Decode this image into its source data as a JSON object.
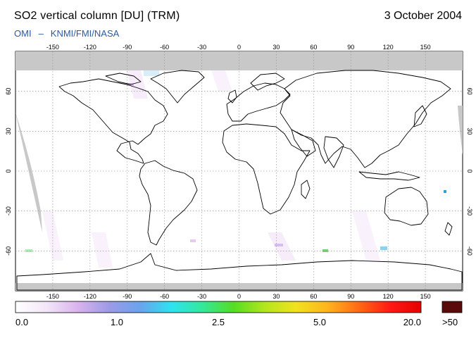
{
  "header": {
    "title": "SO2 vertical column [DU] (TRM)",
    "date": "3 October 2004",
    "source_left": "OMI",
    "source_sep": "–",
    "source_right": "KNMI/FMI/NASA"
  },
  "map": {
    "lon_ticks": [
      "-150",
      "-120",
      "-90",
      "-60",
      "-30",
      "0",
      "30",
      "60",
      "90",
      "120",
      "150"
    ],
    "lat_ticks": [
      "60",
      "30",
      "0",
      "-30",
      "-60"
    ],
    "lon_values": [
      -150,
      -120,
      -90,
      -60,
      -30,
      0,
      30,
      60,
      90,
      120,
      150
    ],
    "lat_values": [
      60,
      30,
      0,
      -30,
      -60
    ],
    "lon_range": [
      -180,
      180
    ],
    "lat_range": [
      -90,
      90
    ],
    "grid": "dotted",
    "no_data_color": "#c8c8c8"
  },
  "colorbar": {
    "labels": [
      "0.0",
      "1.0",
      "2.5",
      "5.0",
      "20.0"
    ],
    "overflow_label": ">50",
    "overflow_color": "#5a0a0a",
    "stops": [
      "#ffffff",
      "#f3e6f8",
      "#d9b3ee",
      "#9d9ae6",
      "#6aa3ee",
      "#2ee3f0",
      "#33e89a",
      "#55dd22",
      "#b4e61e",
      "#f2e21e",
      "#ffb41e",
      "#ff6a14",
      "#ff1a14",
      "#e60000"
    ]
  }
}
